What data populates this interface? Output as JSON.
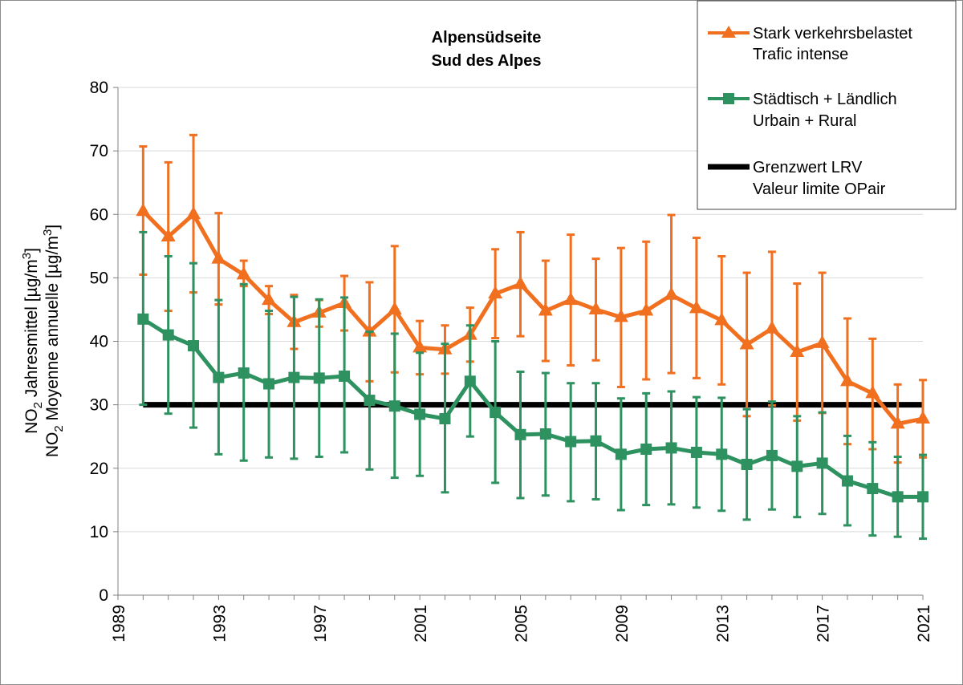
{
  "chart_data": {
    "type": "line",
    "title": [
      "Alpensüdseite",
      "Sud des Alpes"
    ],
    "ylabel": [
      {
        "main": "NO",
        "sub": "2",
        "rest": " Jahresmittel [µg/m",
        "sup": "3",
        "end": "]"
      },
      {
        "main": "NO",
        "sub": "2",
        "rest": " Moyenne annuelle [µg/m",
        "sup": "3",
        "end": "]"
      }
    ],
    "xlabel": "",
    "ylim": [
      0,
      80
    ],
    "xlim": [
      1989,
      2021
    ],
    "yticks": [
      0,
      10,
      20,
      30,
      40,
      50,
      60,
      70,
      80
    ],
    "xticks": [
      1989,
      1993,
      1997,
      2001,
      2005,
      2009,
      2013,
      2017,
      2021
    ],
    "x": [
      1990,
      1991,
      1992,
      1993,
      1994,
      1995,
      1996,
      1997,
      1998,
      1999,
      2000,
      2001,
      2002,
      2003,
      2004,
      2005,
      2006,
      2007,
      2008,
      2009,
      2010,
      2011,
      2012,
      2013,
      2014,
      2015,
      2016,
      2017,
      2018,
      2019,
      2020,
      2021
    ],
    "series": [
      {
        "name": "Stark verkehrsbelastet / Trafic intense",
        "color": "#f07020",
        "marker": "triangle",
        "values": [
          60.5,
          56.5,
          60,
          53,
          50.5,
          46.5,
          43,
          44.5,
          46,
          41.5,
          45,
          39,
          38.7,
          41,
          47.5,
          49,
          44.8,
          46.5,
          45,
          43.8,
          44.8,
          47.3,
          45.2,
          43.3,
          39.5,
          42,
          38.3,
          39.7,
          33.7,
          31.8,
          27,
          27.8
        ],
        "err_high": [
          70.7,
          68.2,
          72.5,
          60.2,
          52.7,
          48.7,
          47.3,
          46.5,
          50.3,
          49.3,
          55,
          43.2,
          42.5,
          45.3,
          54.5,
          57.2,
          52.7,
          56.8,
          53,
          54.7,
          55.7,
          59.9,
          56.3,
          53.4,
          50.8,
          54.1,
          49.1,
          50.8,
          43.6,
          40.4,
          33.2,
          33.9
        ],
        "err_low": [
          50.5,
          44.8,
          47.7,
          45.8,
          48.7,
          44.3,
          38.8,
          42.3,
          41.7,
          33.7,
          35.1,
          34.8,
          34.9,
          36.8,
          40.5,
          40.8,
          36.9,
          36.2,
          37,
          32.8,
          34,
          35,
          34.2,
          33.2,
          28.2,
          29.9,
          27.5,
          28.7,
          23.8,
          23,
          20.9,
          21.7
        ]
      },
      {
        "name": "Städtisch + Ländlich / Urbain + Rural",
        "color": "#2e9160",
        "marker": "square",
        "values": [
          43.5,
          41,
          39.3,
          34.3,
          35,
          33.3,
          34.3,
          34.2,
          34.5,
          30.7,
          29.8,
          28.5,
          27.8,
          33.7,
          28.8,
          25.3,
          25.4,
          24.2,
          24.3,
          22.2,
          23,
          23.2,
          22.5,
          22.2,
          20.6,
          22,
          20.3,
          20.8,
          18,
          16.8,
          15.5,
          15.5
        ],
        "err_high": [
          57.2,
          53.4,
          52.3,
          46.5,
          49,
          44.8,
          47,
          46.6,
          46.9,
          41.5,
          41.2,
          38.2,
          39.6,
          42.5,
          40,
          35.2,
          35,
          33.4,
          33.4,
          31,
          31.8,
          32.1,
          31.2,
          31.1,
          29.3,
          30.5,
          28.2,
          28.8,
          25.1,
          24.1,
          21.8,
          22.1
        ],
        "err_low": [
          30,
          28.6,
          26.4,
          22.2,
          21.2,
          21.7,
          21.5,
          21.8,
          22.5,
          19.8,
          18.5,
          18.8,
          16.2,
          25,
          17.7,
          15.3,
          15.7,
          14.8,
          15.1,
          13.4,
          14.2,
          14.3,
          13.8,
          13.3,
          11.9,
          13.5,
          12.3,
          12.8,
          11,
          9.4,
          9.2,
          8.9
        ]
      },
      {
        "name": "Grenzwert LRV / Valeur limite OPair",
        "color": "#000000",
        "marker": "none",
        "x_range": [
          1990,
          2021
        ],
        "value": 30
      }
    ],
    "legend": [
      {
        "line1": "Stark verkehrsbelastet",
        "line2": "Trafic intense"
      },
      {
        "line1": "Städtisch + Ländlich",
        "line2": "Urbain + Rural"
      },
      {
        "line1": "Grenzwert LRV",
        "line2": "Valeur limite OPair"
      }
    ],
    "legend_position": "top-right",
    "grid": true
  }
}
